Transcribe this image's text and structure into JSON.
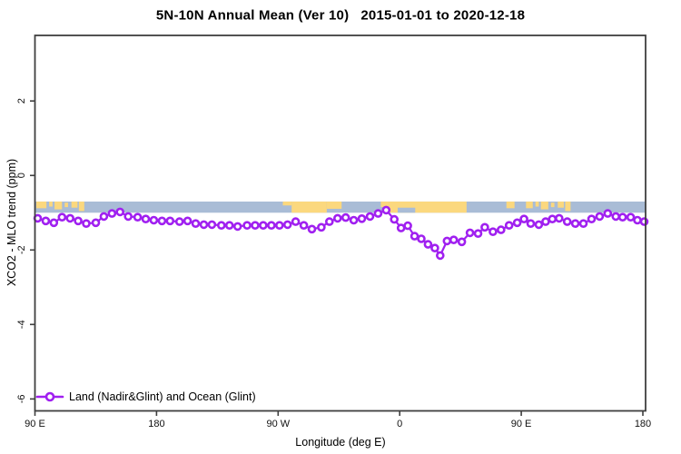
{
  "chart_data": {
    "type": "line",
    "title": "5N-10N Annual Mean (Ver 10)   2015-01-01 to 2020-12-18",
    "xlabel": "Longitude (deg E)",
    "ylabel": "XCO2 - MLO trend (ppm)",
    "xlim": [
      90,
      540
    ],
    "ylim": [
      -6.32,
      3.76
    ],
    "grid": false,
    "x_ticks": [
      {
        "value": 90,
        "label": "90 E"
      },
      {
        "value": 180,
        "label": "180"
      },
      {
        "value": 270,
        "label": "90 W"
      },
      {
        "value": 360,
        "label": "0"
      },
      {
        "value": 450,
        "label": "90 E"
      },
      {
        "value": 540,
        "label": "180"
      }
    ],
    "y_ticks": [
      {
        "value": 2,
        "label": "2"
      },
      {
        "value": 0,
        "label": "0"
      },
      {
        "value": -2,
        "label": "-2"
      },
      {
        "value": -4,
        "label": "-4"
      },
      {
        "value": -6,
        "label": "-6"
      }
    ],
    "legend": {
      "position": "bottom-left",
      "entries": [
        {
          "label": "Land (Nadir&Glint) and Ocean (Glint)",
          "color": "#a020f0",
          "marker": "open-circle"
        }
      ]
    },
    "series": [
      {
        "name": "Land (Nadir&Glint) and Ocean (Glint)",
        "color": "#a020f0",
        "marker": "open-circle",
        "marker_fill": "#ffffff",
        "points": [
          [
            92,
            -1.15
          ],
          [
            98,
            -1.22
          ],
          [
            104,
            -1.27
          ],
          [
            110,
            -1.12
          ],
          [
            116,
            -1.15
          ],
          [
            122,
            -1.22
          ],
          [
            128,
            -1.29
          ],
          [
            135,
            -1.27
          ],
          [
            141,
            -1.1
          ],
          [
            147,
            -1.02
          ],
          [
            153,
            -0.98
          ],
          [
            159,
            -1.1
          ],
          [
            166,
            -1.12
          ],
          [
            172,
            -1.17
          ],
          [
            178,
            -1.2
          ],
          [
            184,
            -1.22
          ],
          [
            190,
            -1.22
          ],
          [
            197,
            -1.24
          ],
          [
            203,
            -1.22
          ],
          [
            209,
            -1.29
          ],
          [
            215,
            -1.32
          ],
          [
            221,
            -1.32
          ],
          [
            228,
            -1.34
          ],
          [
            234,
            -1.34
          ],
          [
            240,
            -1.37
          ],
          [
            247,
            -1.34
          ],
          [
            253,
            -1.34
          ],
          [
            259,
            -1.34
          ],
          [
            265,
            -1.34
          ],
          [
            271,
            -1.34
          ],
          [
            277,
            -1.32
          ],
          [
            283,
            -1.24
          ],
          [
            289,
            -1.34
          ],
          [
            295,
            -1.44
          ],
          [
            302,
            -1.39
          ],
          [
            308,
            -1.24
          ],
          [
            314,
            -1.15
          ],
          [
            320,
            -1.13
          ],
          [
            326,
            -1.2
          ],
          [
            332,
            -1.16
          ],
          [
            338,
            -1.1
          ],
          [
            344,
            -1.02
          ],
          [
            350,
            -0.93
          ],
          [
            356,
            -1.18
          ],
          [
            361,
            -1.41
          ],
          [
            366,
            -1.35
          ],
          [
            371,
            -1.63
          ],
          [
            376,
            -1.7
          ],
          [
            381,
            -1.85
          ],
          [
            386,
            -1.95
          ],
          [
            390,
            -2.15
          ],
          [
            395,
            -1.76
          ],
          [
            400,
            -1.73
          ],
          [
            406,
            -1.78
          ],
          [
            412,
            -1.54
          ],
          [
            418,
            -1.56
          ],
          [
            423,
            -1.39
          ],
          [
            429,
            -1.51
          ],
          [
            435,
            -1.46
          ],
          [
            441,
            -1.34
          ],
          [
            447,
            -1.27
          ],
          [
            452,
            -1.17
          ],
          [
            457,
            -1.29
          ],
          [
            463,
            -1.32
          ],
          [
            468,
            -1.24
          ],
          [
            473,
            -1.17
          ],
          [
            478,
            -1.15
          ],
          [
            484,
            -1.24
          ],
          [
            490,
            -1.29
          ],
          [
            496,
            -1.29
          ],
          [
            502,
            -1.17
          ],
          [
            508,
            -1.1
          ],
          [
            514,
            -1.02
          ],
          [
            520,
            -1.1
          ],
          [
            525,
            -1.12
          ],
          [
            531,
            -1.12
          ],
          [
            536,
            -1.2
          ],
          [
            541,
            -1.24
          ]
        ]
      }
    ],
    "map_strip": {
      "description": "latitude-band world map ribbon (ocean vs land) drawn across the plot",
      "value_top": -0.7,
      "value_bottom": -1.0,
      "ocean_color": "#a9bcd6",
      "land_color": "#fbd87e",
      "land_patches": [
        {
          "x0": 91,
          "x1": 98.5,
          "t": 0,
          "h": 0.6
        },
        {
          "x0": 100.5,
          "x1": 103,
          "t": 0,
          "h": 0.45
        },
        {
          "x0": 104.5,
          "x1": 110,
          "t": 0,
          "h": 0.7
        },
        {
          "x0": 112,
          "x1": 114.5,
          "t": 0.1,
          "h": 0.4
        },
        {
          "x0": 117,
          "x1": 121.5,
          "t": 0,
          "h": 0.55
        },
        {
          "x0": 122.5,
          "x1": 126.5,
          "t": 0,
          "h": 0.85
        },
        {
          "x0": 273.5,
          "x1": 280,
          "t": 0,
          "h": 0.35
        },
        {
          "x0": 280,
          "x1": 306,
          "t": 0,
          "h": 1.0
        },
        {
          "x0": 306,
          "x1": 317,
          "t": 0,
          "h": 0.65
        },
        {
          "x0": 346,
          "x1": 352,
          "t": 0,
          "h": 0.5
        },
        {
          "x0": 352,
          "x1": 409.5,
          "t": 0,
          "h": 1.0
        },
        {
          "x0": 439,
          "x1": 445,
          "t": 0,
          "h": 0.6
        },
        {
          "x0": 453.5,
          "x1": 458.5,
          "t": 0,
          "h": 0.6
        },
        {
          "x0": 460.5,
          "x1": 463,
          "t": 0,
          "h": 0.45
        },
        {
          "x0": 464.5,
          "x1": 470,
          "t": 0,
          "h": 0.7
        },
        {
          "x0": 472,
          "x1": 474.5,
          "t": 0.1,
          "h": 0.4
        },
        {
          "x0": 477,
          "x1": 481.5,
          "t": 0,
          "h": 0.55
        },
        {
          "x0": 482.5,
          "x1": 486.5,
          "t": 0,
          "h": 0.85
        }
      ],
      "water_patches": [
        {
          "x0": 358.5,
          "x1": 371.5,
          "t": 0.55,
          "h": 0.45
        }
      ]
    },
    "axis_color": "#3f3f3f",
    "tick_label_color": "#111111"
  }
}
